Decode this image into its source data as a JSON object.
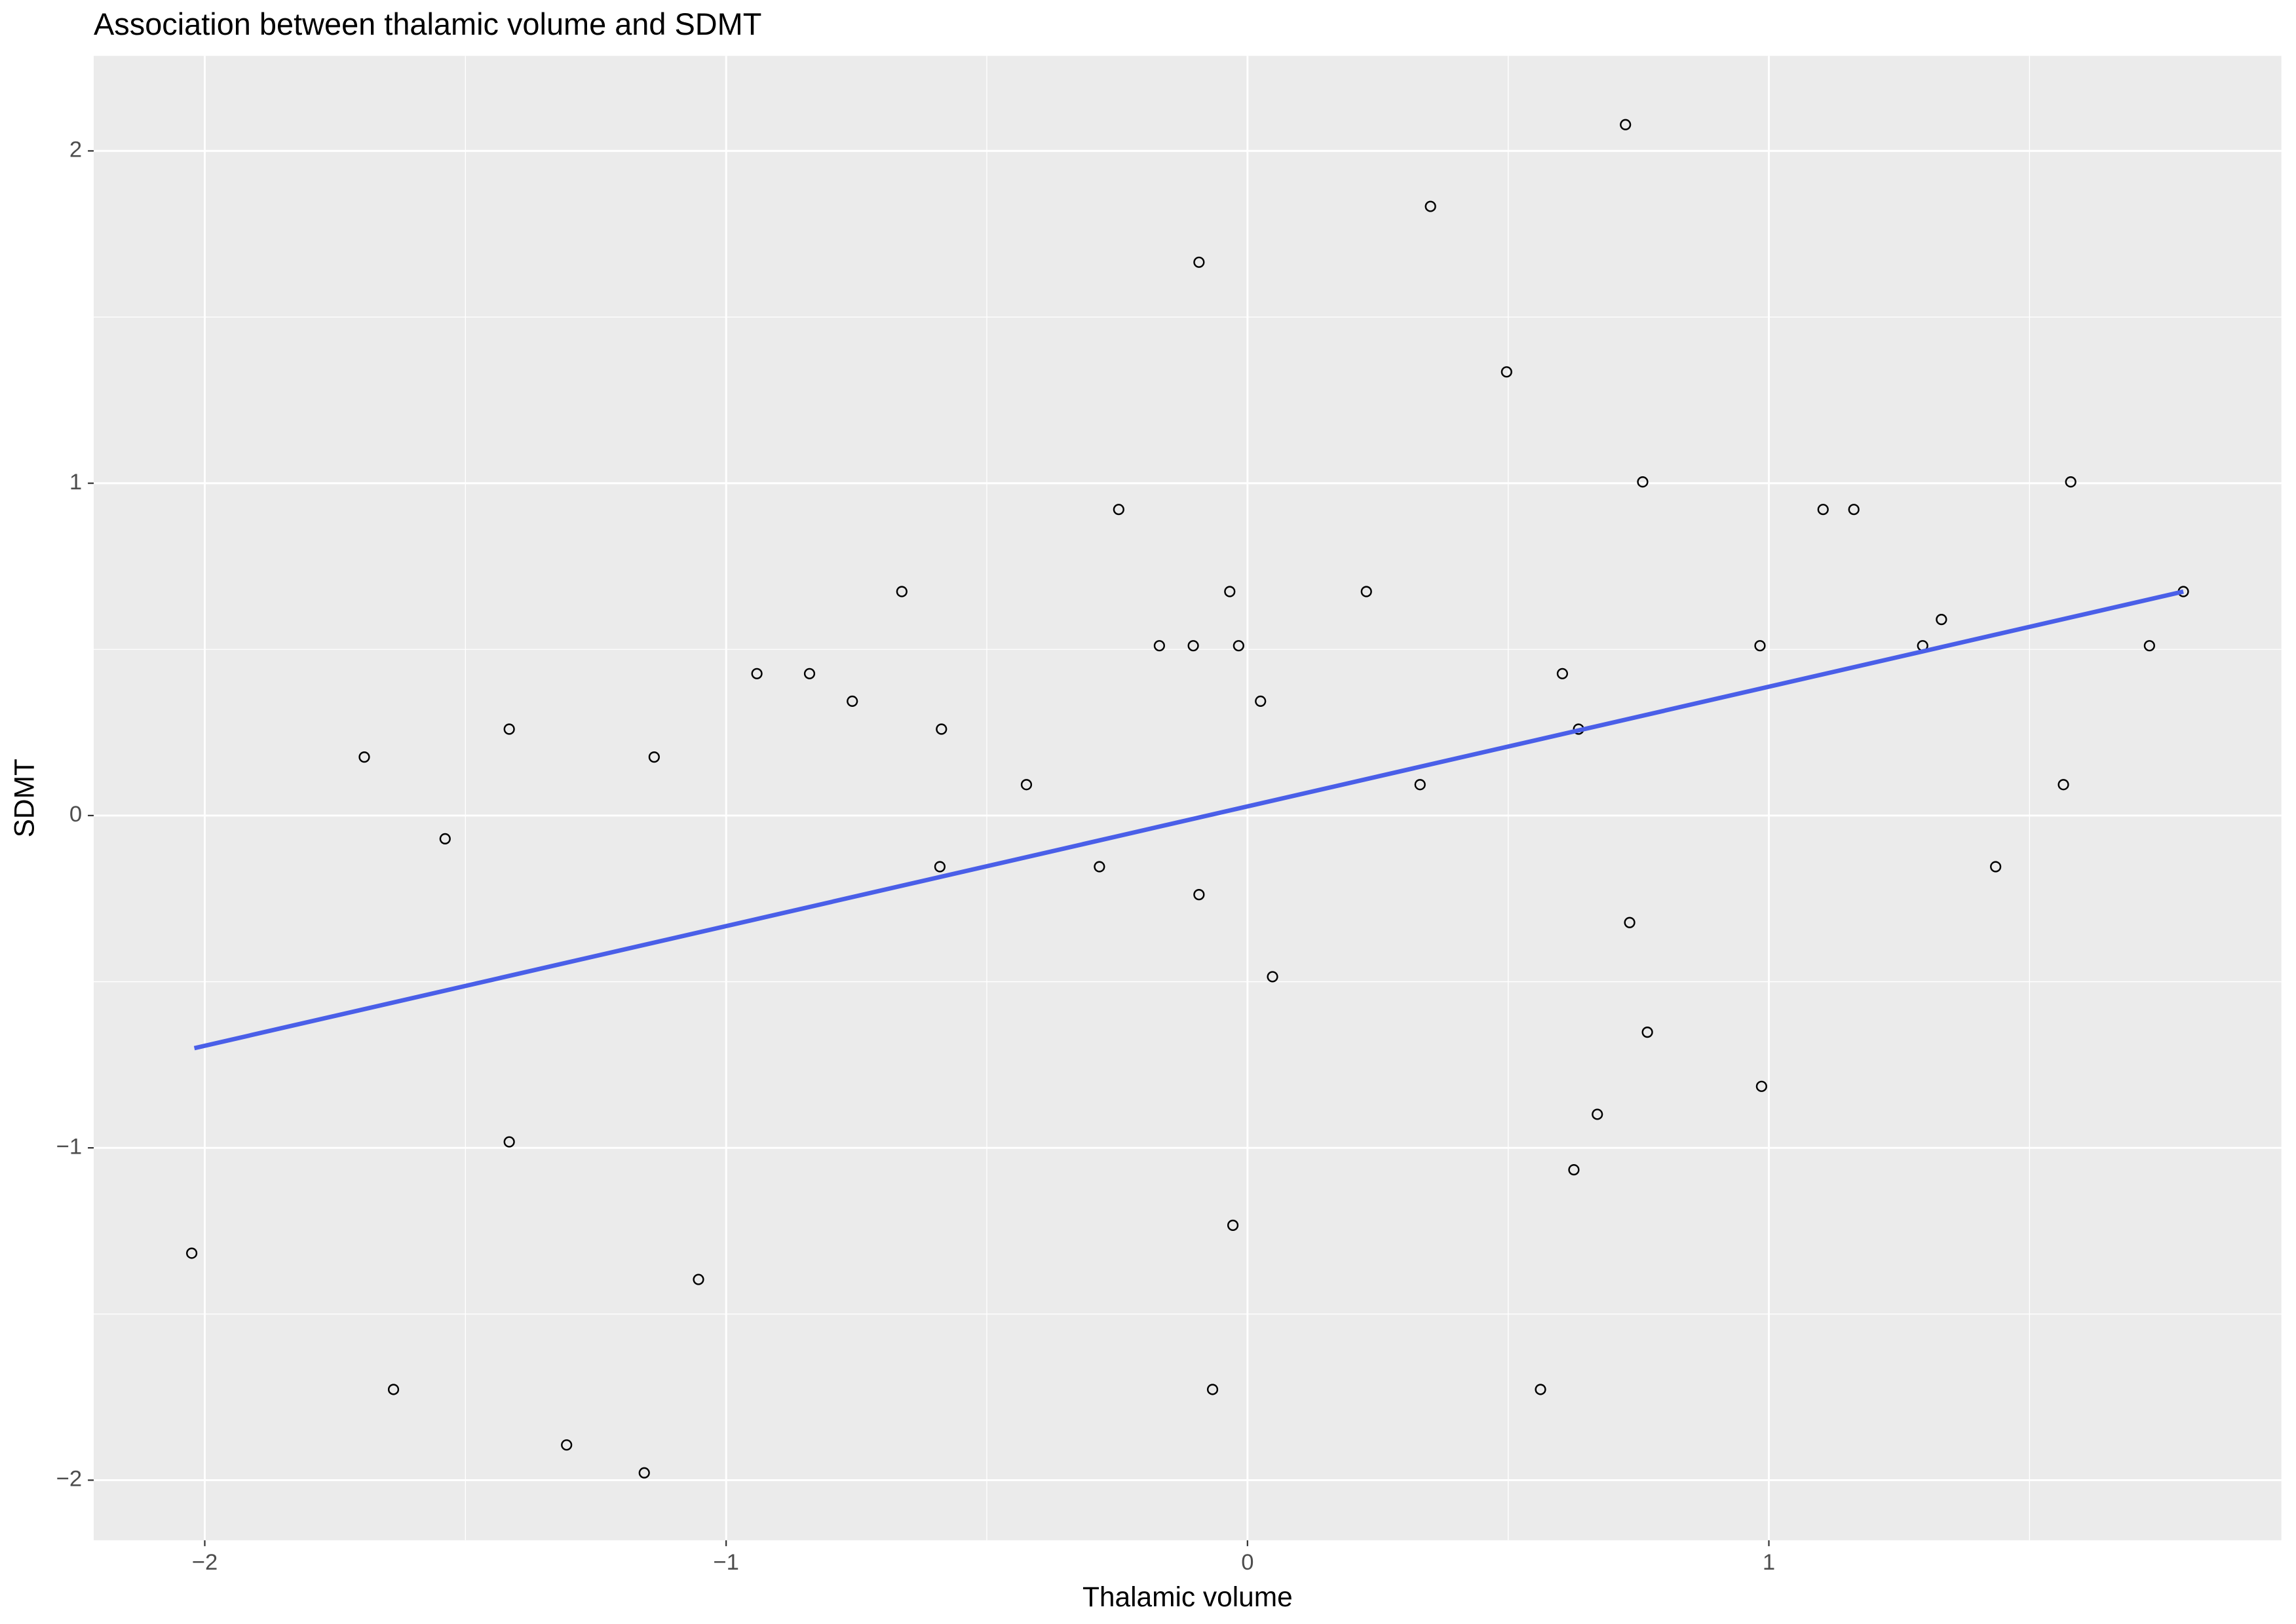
{
  "chart_data": {
    "type": "scatter",
    "title": "Association between thalamic volume and SDMT",
    "x_label": "Thalamic volume",
    "y_label": "SDMT",
    "xlim": [
      -2.213,
      1.983
    ],
    "ylim": [
      -2.181,
      2.286
    ],
    "xticks": [
      {
        "value": -2,
        "label": "−2"
      },
      {
        "value": -1,
        "label": "−1"
      },
      0,
      1
    ],
    "yticks": [
      {
        "value": -2,
        "label": "−2"
      },
      {
        "value": -1,
        "label": "−1"
      },
      0,
      1,
      2
    ],
    "xminor": [
      -1.5,
      -0.5,
      0.5,
      1.5
    ],
    "yminor": [
      -1.5,
      -0.5,
      0.5,
      1.5
    ],
    "grid": true,
    "panel_color": "#ebebeb",
    "point_color": "#000000",
    "x": [
      0.725,
      0.351,
      -0.093,
      0.497,
      0.758,
      1.579,
      -0.247,
      1.104,
      1.163,
      -0.663,
      -0.034,
      0.228,
      1.795,
      1.331,
      -0.169,
      -0.104,
      -0.017,
      0.983,
      1.295,
      1.73,
      -0.941,
      -0.84,
      0.604,
      -0.758,
      0.025,
      -1.416,
      -0.587,
      0.635,
      -1.694,
      -1.138,
      -0.424,
      0.331,
      1.565,
      -1.539,
      -0.59,
      -0.284,
      1.435,
      -0.093,
      0.733,
      0.048,
      0.767,
      0.986,
      0.671,
      -1.416,
      0.626,
      -0.028,
      -2.025,
      -1.053,
      -1.638,
      -0.067,
      0.562,
      -1.306,
      -1.157
    ],
    "y": [
      2.079,
      1.833,
      1.665,
      1.335,
      1.004,
      1.004,
      0.921,
      0.921,
      0.921,
      0.674,
      0.674,
      0.674,
      0.674,
      0.59,
      0.511,
      0.511,
      0.511,
      0.511,
      0.511,
      0.511,
      0.427,
      0.427,
      0.427,
      0.344,
      0.344,
      0.26,
      0.26,
      0.26,
      0.176,
      0.176,
      0.093,
      0.093,
      0.093,
      -0.07,
      -0.154,
      -0.154,
      -0.154,
      -0.238,
      -0.322,
      -0.485,
      -0.652,
      -0.815,
      -0.899,
      -0.982,
      -1.066,
      -1.233,
      -1.317,
      -1.396,
      -1.727,
      -1.727,
      -1.727,
      -1.894,
      -1.978
    ],
    "fit": {
      "color": "#4a5fe8",
      "x": [
        -2.02,
        1.795
      ],
      "y": [
        -0.7,
        0.674
      ]
    }
  }
}
